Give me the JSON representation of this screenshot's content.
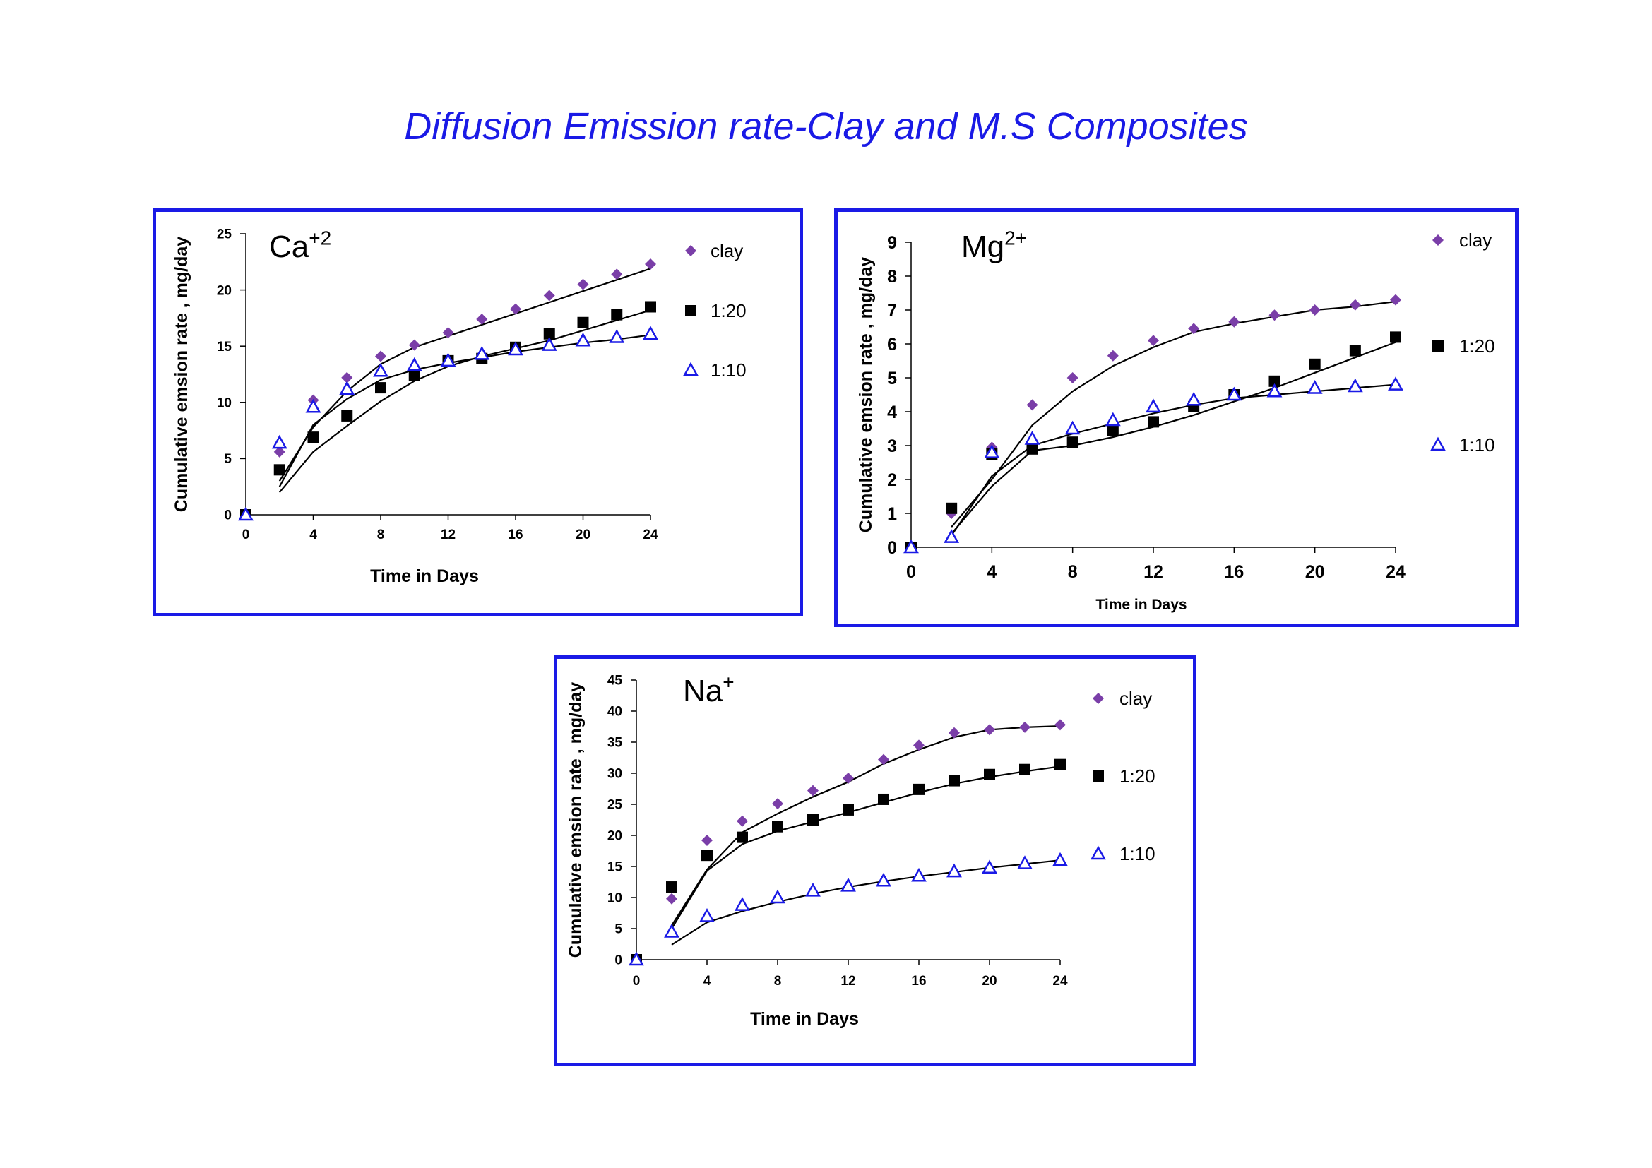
{
  "title": "Diffusion Emission rate-Clay and M.S Composites",
  "colors": {
    "title": "#1a1ae6",
    "border": "#1a1ae6",
    "clay": "#7a3ea8",
    "r1_20": "#000000",
    "r1_10": "#1a1ae6",
    "fit": "#000000"
  },
  "chart_data": [
    {
      "type": "scatter",
      "ion_label": {
        "base": "Ca",
        "sup": "+2"
      },
      "xlabel": "Time  in Days",
      "ylabel": "Cumulative emsion rate , mg/day",
      "xlim": [
        0,
        24
      ],
      "ylim": [
        0,
        25
      ],
      "xticks": [
        0,
        4,
        8,
        12,
        16,
        20,
        24
      ],
      "yticks": [
        0,
        5,
        10,
        15,
        20,
        25
      ],
      "legend": [
        "clay",
        "1:20",
        "1:10"
      ],
      "series": [
        {
          "name": "clay",
          "marker": "diamond",
          "x": [
            0,
            2,
            4,
            6,
            8,
            10,
            12,
            14,
            16,
            18,
            20,
            22,
            24
          ],
          "y": [
            0,
            5.6,
            10.2,
            12.2,
            14.1,
            15.1,
            16.2,
            17.4,
            18.3,
            19.5,
            20.5,
            21.4,
            22.3
          ]
        },
        {
          "name": "1:20",
          "marker": "square",
          "x": [
            0,
            2,
            4,
            6,
            8,
            10,
            12,
            14,
            16,
            18,
            20,
            22,
            24
          ],
          "y": [
            0,
            4.0,
            6.9,
            8.8,
            11.3,
            12.4,
            13.7,
            13.9,
            14.9,
            16.1,
            17.1,
            17.8,
            18.5
          ]
        },
        {
          "name": "1:10",
          "marker": "triangle",
          "x": [
            0,
            2,
            4,
            6,
            8,
            10,
            12,
            14,
            16,
            18,
            20,
            22,
            24
          ],
          "y": [
            0,
            6.4,
            9.6,
            11.2,
            12.8,
            13.3,
            13.7,
            14.3,
            14.7,
            15.1,
            15.5,
            15.8,
            16.1
          ]
        }
      ],
      "fits": [
        {
          "x": [
            2,
            4,
            6,
            8,
            10,
            12,
            14,
            16,
            18,
            20,
            22,
            24
          ],
          "y": [
            3.0,
            7.8,
            11.0,
            13.4,
            14.9,
            15.9,
            16.9,
            17.9,
            18.9,
            19.9,
            20.9,
            21.9
          ]
        },
        {
          "x": [
            2,
            4,
            6,
            8,
            10,
            12,
            14,
            16,
            18,
            20,
            22,
            24
          ],
          "y": [
            2.0,
            5.6,
            7.9,
            10.1,
            11.9,
            13.2,
            14.1,
            14.8,
            15.5,
            16.4,
            17.3,
            18.2
          ]
        },
        {
          "x": [
            2,
            4,
            6,
            8,
            10,
            12,
            14,
            16,
            18,
            20,
            22,
            24
          ],
          "y": [
            2.5,
            8.0,
            10.3,
            12.0,
            12.9,
            13.5,
            14.0,
            14.5,
            14.9,
            15.3,
            15.6,
            16.0
          ]
        }
      ]
    },
    {
      "type": "scatter",
      "ion_label": {
        "base": "Mg",
        "sup": "2+"
      },
      "xlabel": "Time  in Days",
      "ylabel": "Cumulative emsion rate , mg/day",
      "xlim": [
        0,
        24
      ],
      "ylim": [
        0,
        9
      ],
      "xticks": [
        0,
        4,
        8,
        12,
        16,
        20,
        24
      ],
      "yticks": [
        0,
        1,
        2,
        3,
        4,
        5,
        6,
        7,
        8,
        9
      ],
      "legend": [
        "clay",
        "1:20",
        "1:10"
      ],
      "series": [
        {
          "name": "clay",
          "marker": "diamond",
          "x": [
            0,
            2,
            4,
            6,
            8,
            10,
            12,
            14,
            16,
            18,
            20,
            22,
            24
          ],
          "y": [
            0,
            1.0,
            2.95,
            4.2,
            5.0,
            5.65,
            6.1,
            6.45,
            6.65,
            6.85,
            7.0,
            7.15,
            7.3
          ]
        },
        {
          "name": "1:20",
          "marker": "square",
          "x": [
            0,
            2,
            4,
            6,
            8,
            10,
            12,
            14,
            16,
            18,
            20,
            22,
            24
          ],
          "y": [
            0,
            1.15,
            2.75,
            2.9,
            3.1,
            3.45,
            3.7,
            4.15,
            4.5,
            4.9,
            5.4,
            5.8,
            6.2
          ]
        },
        {
          "name": "1:10",
          "marker": "triangle",
          "x": [
            0,
            2,
            4,
            6,
            8,
            10,
            12,
            14,
            16,
            18,
            20,
            22,
            24
          ],
          "y": [
            0,
            0.3,
            2.8,
            3.2,
            3.5,
            3.75,
            4.15,
            4.35,
            4.5,
            4.6,
            4.7,
            4.75,
            4.8
          ]
        }
      ],
      "fits": [
        {
          "x": [
            2,
            4,
            6,
            8,
            10,
            12,
            14,
            16,
            18,
            20,
            22,
            24
          ],
          "y": [
            0.6,
            2.0,
            3.6,
            4.6,
            5.35,
            5.9,
            6.35,
            6.6,
            6.8,
            7.0,
            7.1,
            7.25
          ]
        },
        {
          "x": [
            2,
            4,
            6,
            8,
            10,
            12,
            14,
            16,
            18,
            20,
            22,
            24
          ],
          "y": [
            0.4,
            1.8,
            2.85,
            3.0,
            3.25,
            3.55,
            3.9,
            4.3,
            4.7,
            5.15,
            5.6,
            6.05
          ]
        },
        {
          "x": [
            2,
            4,
            6,
            8,
            10,
            12,
            14,
            16,
            18,
            20,
            22,
            24
          ],
          "y": [
            0.35,
            2.1,
            3.0,
            3.35,
            3.65,
            3.95,
            4.2,
            4.4,
            4.5,
            4.6,
            4.7,
            4.8
          ]
        }
      ]
    },
    {
      "type": "scatter",
      "ion_label": {
        "base": "Na",
        "sup": "+"
      },
      "xlabel": "Time  in Days",
      "ylabel": "Cumulative emsion rate , mg/day",
      "xlim": [
        0,
        24
      ],
      "ylim": [
        0,
        45
      ],
      "xticks": [
        0,
        4,
        8,
        12,
        16,
        20,
        24
      ],
      "yticks": [
        0,
        5,
        10,
        15,
        20,
        25,
        30,
        35,
        40,
        45
      ],
      "legend": [
        "clay",
        "1:20",
        "1:10"
      ],
      "series": [
        {
          "name": "clay",
          "marker": "diamond",
          "x": [
            0,
            2,
            4,
            6,
            8,
            10,
            12,
            14,
            16,
            18,
            20,
            22,
            24
          ],
          "y": [
            0,
            9.8,
            19.2,
            22.3,
            25.1,
            27.2,
            29.2,
            32.2,
            34.5,
            36.5,
            37.0,
            37.4,
            37.8
          ]
        },
        {
          "name": "1:20",
          "marker": "square",
          "x": [
            0,
            2,
            4,
            6,
            8,
            10,
            12,
            14,
            16,
            18,
            20,
            22,
            24
          ],
          "y": [
            0,
            11.7,
            16.8,
            19.7,
            21.4,
            22.5,
            24.1,
            25.8,
            27.4,
            28.8,
            29.8,
            30.6,
            31.4
          ]
        },
        {
          "name": "1:10",
          "marker": "triangle",
          "x": [
            0,
            2,
            4,
            6,
            8,
            10,
            12,
            14,
            16,
            18,
            20,
            22,
            24
          ],
          "y": [
            0,
            4.5,
            7.0,
            8.8,
            10.0,
            11.1,
            11.9,
            12.7,
            13.5,
            14.2,
            14.8,
            15.5,
            16.0
          ]
        }
      ],
      "fits": [
        {
          "x": [
            2,
            4,
            6,
            8,
            10,
            12,
            14,
            16,
            18,
            20,
            22,
            24
          ],
          "y": [
            5.5,
            14.5,
            20.5,
            23.5,
            26.2,
            28.6,
            31.5,
            33.8,
            35.8,
            37.0,
            37.4,
            37.6
          ]
        },
        {
          "x": [
            2,
            4,
            6,
            8,
            10,
            12,
            14,
            16,
            18,
            20,
            22,
            24
          ],
          "y": [
            5.0,
            14.3,
            18.6,
            20.7,
            22.2,
            23.7,
            25.3,
            26.9,
            28.3,
            29.4,
            30.3,
            31.1
          ]
        },
        {
          "x": [
            2,
            4,
            6,
            8,
            10,
            12,
            14,
            16,
            18,
            20,
            22,
            24
          ],
          "y": [
            2.4,
            6.0,
            7.8,
            9.3,
            10.6,
            11.7,
            12.6,
            13.4,
            14.1,
            14.8,
            15.4,
            16.0
          ]
        }
      ]
    }
  ]
}
